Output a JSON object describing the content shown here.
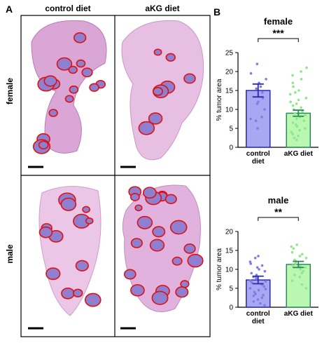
{
  "panel_a": {
    "label": "A",
    "columns": [
      "control diet",
      "aKG diet"
    ],
    "rows": [
      "female",
      "male"
    ]
  },
  "panel_b": {
    "label": "B"
  },
  "chart_data": [
    {
      "type": "bar",
      "title": "female",
      "ylabel": "% tumor area",
      "categories": [
        "control diet",
        "aKG diet"
      ],
      "values": [
        15,
        9
      ],
      "errors": [
        1.7,
        0.8
      ],
      "fill_colors": [
        "#a8a8f2",
        "#b9f7b2"
      ],
      "edge_colors": [
        "#2a2ab0",
        "#2b8a55"
      ],
      "point_colors": [
        "#7d7de6",
        "#8ee88a"
      ],
      "points": [
        [
          22,
          19.5,
          18,
          17,
          16,
          15.5,
          14.5,
          13,
          12,
          11.5,
          10,
          8,
          7.5,
          7,
          5
        ],
        [
          21,
          20,
          19,
          18,
          17,
          16,
          15,
          14.5,
          14,
          13,
          12.5,
          12,
          11.5,
          11,
          10.5,
          10,
          9.5,
          9,
          8.5,
          8,
          7.5,
          7,
          6.5,
          6,
          5.5,
          5,
          4.5,
          4,
          3.5,
          3,
          2.5,
          2
        ]
      ],
      "ylim": [
        0,
        25
      ],
      "yticks": [
        0,
        5,
        10,
        15,
        20,
        25
      ],
      "significance": "***"
    },
    {
      "type": "bar",
      "title": "male",
      "ylabel": "% tumor area",
      "categories": [
        "control diet",
        "aKG diet"
      ],
      "values": [
        7.2,
        11.3
      ],
      "errors": [
        1,
        0.8
      ],
      "fill_colors": [
        "#a8a8f2",
        "#b9f7b2"
      ],
      "edge_colors": [
        "#2a2ab0",
        "#2b8a55"
      ],
      "point_colors": [
        "#7d7de6",
        "#8ee88a"
      ],
      "points": [
        [
          13.5,
          13,
          12,
          11.5,
          11,
          10.5,
          10,
          9.5,
          9,
          8.5,
          8,
          7.5,
          7,
          6.5,
          6,
          5.5,
          5,
          4.5,
          4,
          3.5,
          3,
          2.5,
          2,
          1.5,
          1,
          0.5,
          6.8,
          7.8,
          4.8,
          3.2
        ],
        [
          16.5,
          16,
          15.5,
          14.5,
          14,
          13.5,
          13,
          12.5,
          12,
          11.5,
          11,
          10.5,
          10,
          9.5,
          9,
          8.5,
          8,
          7,
          6,
          5,
          10.8,
          12.2
        ]
      ],
      "ylim": [
        0,
        20
      ],
      "yticks": [
        0,
        5,
        10,
        15,
        20
      ],
      "significance": "**"
    }
  ]
}
